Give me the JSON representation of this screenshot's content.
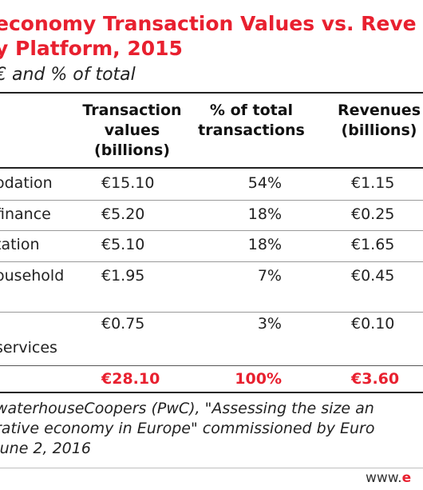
{
  "chart_data": {
    "type": "table",
    "title": "economy Transaction Values vs. Reve\ny Platform, 2015",
    "subtitle": "€ and % of total",
    "columns": [
      "Transaction\nvalues\n(billions)",
      "% of total\ntransactions",
      "Revenues\n(billions)"
    ],
    "rows": [
      {
        "label": "odation",
        "values": [
          "€15.10",
          "54%",
          "€1.15"
        ]
      },
      {
        "label": "finance",
        "values": [
          "€5.20",
          "18%",
          "€0.25"
        ]
      },
      {
        "label": "tation",
        "values": [
          "€5.10",
          "18%",
          "€1.65"
        ]
      },
      {
        "label": "ousehold",
        "values": [
          "€1.95",
          "7%",
          "€0.45"
        ]
      },
      {
        "label": "services",
        "values": [
          "€0.75",
          "3%",
          "€0.10"
        ]
      }
    ],
    "total": {
      "label": "",
      "values": [
        "€28.10",
        "100%",
        "€3.60"
      ]
    },
    "source": "waterhouseCoopers (PwC), \"Assessing the size an\nrative economy in Europe\" commissioned by Euro\nJune 2, 2016",
    "brand": {
      "prefix": "www.",
      "accent": "e"
    }
  },
  "colors": {
    "accent": "#e8202f",
    "text": "#222222"
  }
}
